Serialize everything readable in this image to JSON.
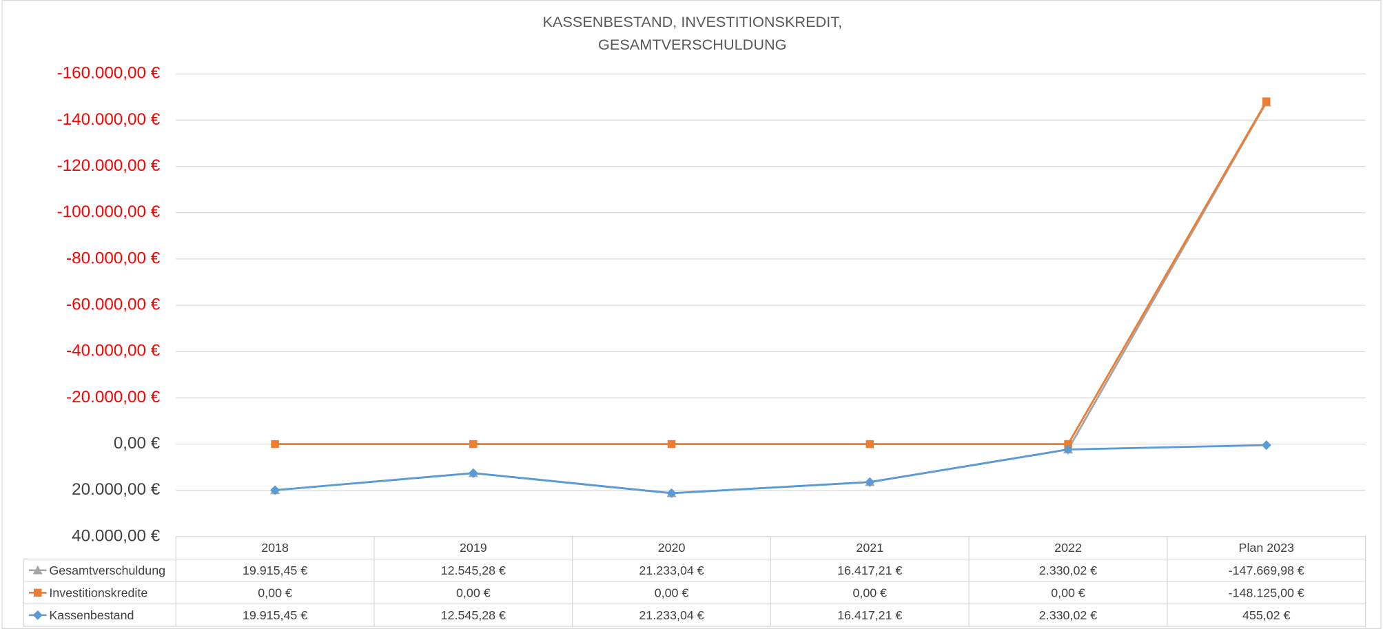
{
  "chart_data": {
    "type": "line",
    "title": [
      "KASSENBESTAND, INVESTITIONSKREDIT,",
      "GESAMTVERSCHULDUNG"
    ],
    "categories": [
      "2018",
      "2019",
      "2020",
      "2021",
      "2022",
      "Plan 2023"
    ],
    "series": [
      {
        "name": "Gesamtverschuldung",
        "color": "#a5a5a5",
        "marker": "triangle",
        "values": [
          19915.45,
          12545.28,
          21233.04,
          16417.21,
          2330.02,
          -147669.98
        ],
        "value_labels": [
          "19.915,45 €",
          "12.545,28 €",
          "21.233,04 €",
          "16.417,21 €",
          "2.330,02 €",
          "-147.669,98 €"
        ]
      },
      {
        "name": "Investitionskredite",
        "color": "#ed7d31",
        "marker": "square",
        "values": [
          0,
          0,
          0,
          0,
          0,
          -148125
        ],
        "value_labels": [
          "0,00 €",
          "0,00 €",
          "0,00 €",
          "0,00 €",
          "0,00 €",
          "-148.125,00 €"
        ]
      },
      {
        "name": "Kassenbestand",
        "color": "#5b9bd5",
        "marker": "diamond",
        "values": [
          19915.45,
          12545.28,
          21233.04,
          16417.21,
          2330.02,
          455.02
        ],
        "value_labels": [
          "19.915,45 €",
          "12.545,28 €",
          "21.233,04 €",
          "16.417,21 €",
          "2.330,02 €",
          "455,02 €"
        ]
      }
    ],
    "ylim": [
      40000,
      -160000
    ],
    "yticks": [
      {
        "value": -160000,
        "label": "-160.000,00 €"
      },
      {
        "value": -140000,
        "label": "-140.000,00 €"
      },
      {
        "value": -120000,
        "label": "-120.000,00 €"
      },
      {
        "value": -100000,
        "label": "-100.000,00 €"
      },
      {
        "value": -80000,
        "label": "-80.000,00 €"
      },
      {
        "value": -60000,
        "label": "-60.000,00 €"
      },
      {
        "value": -40000,
        "label": "-40.000,00 €"
      },
      {
        "value": -20000,
        "label": "-20.000,00 €"
      },
      {
        "value": 0,
        "label": "0,00 €"
      },
      {
        "value": 20000,
        "label": "20.000,00 €"
      },
      {
        "value": 40000,
        "label": "40.000,00 €"
      }
    ],
    "negative_tick_color": "#ff0000",
    "tick_color": "#404040",
    "grid": true,
    "data_table": true
  }
}
